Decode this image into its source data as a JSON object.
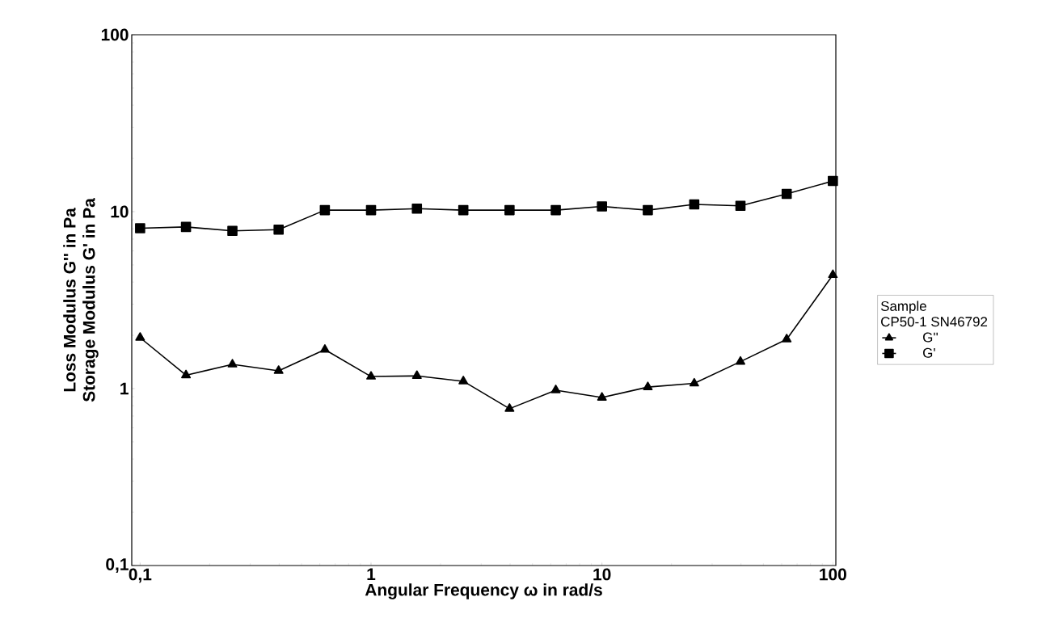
{
  "chart_data": {
    "type": "line",
    "xlabel": "Angular Frequency ω in rad/s",
    "ylabel": "Loss Modulus G'' in Pa Storage Modulus G' in Pa",
    "legend_title": "Sample",
    "annotations": [
      "CP50-1 SN46792"
    ],
    "x": [
      0.1,
      0.158,
      0.251,
      0.398,
      0.631,
      1,
      1.58,
      2.51,
      3.98,
      6.31,
      10,
      15.8,
      25.1,
      39.8,
      63.1,
      100
    ],
    "series": [
      {
        "name": "G''",
        "color": "#000000",
        "marker": "triangle",
        "values": [
          1.94,
          1.19,
          1.37,
          1.26,
          1.66,
          1.17,
          1.18,
          1.1,
          0.77,
          0.98,
          0.89,
          1.02,
          1.07,
          1.42,
          1.9,
          4.39
        ]
      },
      {
        "name": "G'",
        "color": "#000000",
        "marker": "square",
        "values": [
          8.06,
          8.2,
          7.79,
          7.92,
          10.2,
          10.2,
          10.4,
          10.2,
          10.2,
          10.2,
          10.7,
          10.2,
          11.0,
          10.8,
          12.6,
          14.9
        ]
      }
    ],
    "log": "xy",
    "xlim": [
      0.092,
      103
    ],
    "ylim": [
      0.1,
      100
    ],
    "xticks": [
      {
        "value": 0.1,
        "label": "0,1"
      },
      1,
      10,
      100
    ],
    "yticks": [
      {
        "value": 0.1,
        "label": "0,1"
      },
      1,
      10,
      100
    ],
    "grid": false,
    "legend": "right",
    "line_style": "solid"
  }
}
